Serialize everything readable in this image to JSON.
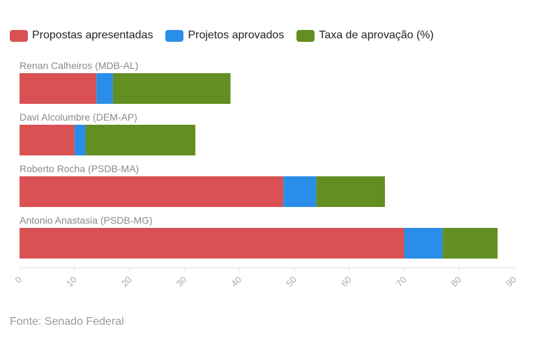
{
  "chart_data": {
    "type": "bar",
    "orientation": "horizontal",
    "stacked": true,
    "categories": [
      "Renan Calheiros (MDB-AL)",
      "Davi Alcolumbre (DEM-AP)",
      "Roberto Rocha (PSDB-MA)",
      "Antonio Anastasia (PSDB-MG)"
    ],
    "series": [
      {
        "name": "Propostas apresentadas",
        "color": "#d95153",
        "values": [
          14,
          10,
          48,
          70
        ]
      },
      {
        "name": "Projetos aprovados",
        "color": "#2a8ee8",
        "values": [
          3,
          2,
          6,
          7
        ]
      },
      {
        "name": "Taxa de aprovação (%)",
        "color": "#638e21",
        "values": [
          21.4,
          20,
          12.5,
          10
        ]
      }
    ],
    "xlim": [
      0,
      90
    ],
    "xticks": [
      "0",
      "10",
      "20",
      "30",
      "40",
      "50",
      "60",
      "70",
      "80",
      "90"
    ],
    "legend_position": "top-left",
    "grid": false
  },
  "source": "Fonte: Senado Federal"
}
